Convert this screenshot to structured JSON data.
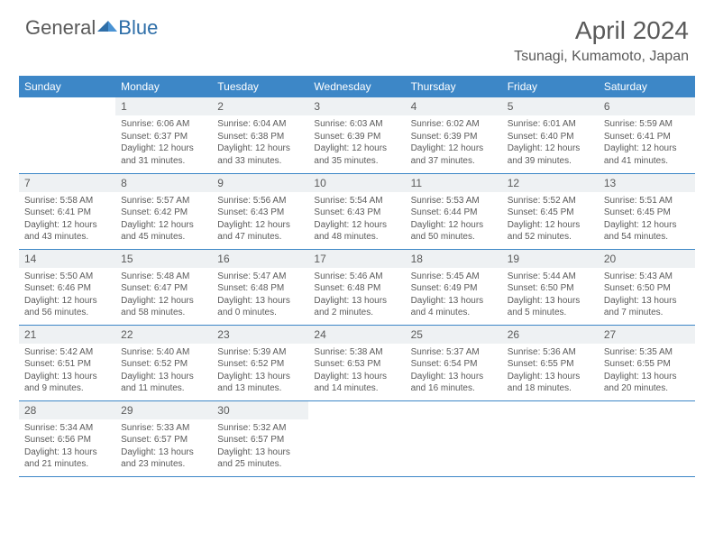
{
  "brand": {
    "part1": "General",
    "part2": "Blue"
  },
  "colors": {
    "header_bg": "#3d87c7",
    "text": "#5a5a5a",
    "daynum_bg": "#eef1f3",
    "rule": "#3d87c7"
  },
  "title": "April 2024",
  "location": "Tsunagi, Kumamoto, Japan",
  "day_headers": [
    "Sunday",
    "Monday",
    "Tuesday",
    "Wednesday",
    "Thursday",
    "Friday",
    "Saturday"
  ],
  "weeks": [
    [
      null,
      {
        "n": "1",
        "l1": "Sunrise: 6:06 AM",
        "l2": "Sunset: 6:37 PM",
        "l3": "Daylight: 12 hours",
        "l4": "and 31 minutes."
      },
      {
        "n": "2",
        "l1": "Sunrise: 6:04 AM",
        "l2": "Sunset: 6:38 PM",
        "l3": "Daylight: 12 hours",
        "l4": "and 33 minutes."
      },
      {
        "n": "3",
        "l1": "Sunrise: 6:03 AM",
        "l2": "Sunset: 6:39 PM",
        "l3": "Daylight: 12 hours",
        "l4": "and 35 minutes."
      },
      {
        "n": "4",
        "l1": "Sunrise: 6:02 AM",
        "l2": "Sunset: 6:39 PM",
        "l3": "Daylight: 12 hours",
        "l4": "and 37 minutes."
      },
      {
        "n": "5",
        "l1": "Sunrise: 6:01 AM",
        "l2": "Sunset: 6:40 PM",
        "l3": "Daylight: 12 hours",
        "l4": "and 39 minutes."
      },
      {
        "n": "6",
        "l1": "Sunrise: 5:59 AM",
        "l2": "Sunset: 6:41 PM",
        "l3": "Daylight: 12 hours",
        "l4": "and 41 minutes."
      }
    ],
    [
      {
        "n": "7",
        "l1": "Sunrise: 5:58 AM",
        "l2": "Sunset: 6:41 PM",
        "l3": "Daylight: 12 hours",
        "l4": "and 43 minutes."
      },
      {
        "n": "8",
        "l1": "Sunrise: 5:57 AM",
        "l2": "Sunset: 6:42 PM",
        "l3": "Daylight: 12 hours",
        "l4": "and 45 minutes."
      },
      {
        "n": "9",
        "l1": "Sunrise: 5:56 AM",
        "l2": "Sunset: 6:43 PM",
        "l3": "Daylight: 12 hours",
        "l4": "and 47 minutes."
      },
      {
        "n": "10",
        "l1": "Sunrise: 5:54 AM",
        "l2": "Sunset: 6:43 PM",
        "l3": "Daylight: 12 hours",
        "l4": "and 48 minutes."
      },
      {
        "n": "11",
        "l1": "Sunrise: 5:53 AM",
        "l2": "Sunset: 6:44 PM",
        "l3": "Daylight: 12 hours",
        "l4": "and 50 minutes."
      },
      {
        "n": "12",
        "l1": "Sunrise: 5:52 AM",
        "l2": "Sunset: 6:45 PM",
        "l3": "Daylight: 12 hours",
        "l4": "and 52 minutes."
      },
      {
        "n": "13",
        "l1": "Sunrise: 5:51 AM",
        "l2": "Sunset: 6:45 PM",
        "l3": "Daylight: 12 hours",
        "l4": "and 54 minutes."
      }
    ],
    [
      {
        "n": "14",
        "l1": "Sunrise: 5:50 AM",
        "l2": "Sunset: 6:46 PM",
        "l3": "Daylight: 12 hours",
        "l4": "and 56 minutes."
      },
      {
        "n": "15",
        "l1": "Sunrise: 5:48 AM",
        "l2": "Sunset: 6:47 PM",
        "l3": "Daylight: 12 hours",
        "l4": "and 58 minutes."
      },
      {
        "n": "16",
        "l1": "Sunrise: 5:47 AM",
        "l2": "Sunset: 6:48 PM",
        "l3": "Daylight: 13 hours",
        "l4": "and 0 minutes."
      },
      {
        "n": "17",
        "l1": "Sunrise: 5:46 AM",
        "l2": "Sunset: 6:48 PM",
        "l3": "Daylight: 13 hours",
        "l4": "and 2 minutes."
      },
      {
        "n": "18",
        "l1": "Sunrise: 5:45 AM",
        "l2": "Sunset: 6:49 PM",
        "l3": "Daylight: 13 hours",
        "l4": "and 4 minutes."
      },
      {
        "n": "19",
        "l1": "Sunrise: 5:44 AM",
        "l2": "Sunset: 6:50 PM",
        "l3": "Daylight: 13 hours",
        "l4": "and 5 minutes."
      },
      {
        "n": "20",
        "l1": "Sunrise: 5:43 AM",
        "l2": "Sunset: 6:50 PM",
        "l3": "Daylight: 13 hours",
        "l4": "and 7 minutes."
      }
    ],
    [
      {
        "n": "21",
        "l1": "Sunrise: 5:42 AM",
        "l2": "Sunset: 6:51 PM",
        "l3": "Daylight: 13 hours",
        "l4": "and 9 minutes."
      },
      {
        "n": "22",
        "l1": "Sunrise: 5:40 AM",
        "l2": "Sunset: 6:52 PM",
        "l3": "Daylight: 13 hours",
        "l4": "and 11 minutes."
      },
      {
        "n": "23",
        "l1": "Sunrise: 5:39 AM",
        "l2": "Sunset: 6:52 PM",
        "l3": "Daylight: 13 hours",
        "l4": "and 13 minutes."
      },
      {
        "n": "24",
        "l1": "Sunrise: 5:38 AM",
        "l2": "Sunset: 6:53 PM",
        "l3": "Daylight: 13 hours",
        "l4": "and 14 minutes."
      },
      {
        "n": "25",
        "l1": "Sunrise: 5:37 AM",
        "l2": "Sunset: 6:54 PM",
        "l3": "Daylight: 13 hours",
        "l4": "and 16 minutes."
      },
      {
        "n": "26",
        "l1": "Sunrise: 5:36 AM",
        "l2": "Sunset: 6:55 PM",
        "l3": "Daylight: 13 hours",
        "l4": "and 18 minutes."
      },
      {
        "n": "27",
        "l1": "Sunrise: 5:35 AM",
        "l2": "Sunset: 6:55 PM",
        "l3": "Daylight: 13 hours",
        "l4": "and 20 minutes."
      }
    ],
    [
      {
        "n": "28",
        "l1": "Sunrise: 5:34 AM",
        "l2": "Sunset: 6:56 PM",
        "l3": "Daylight: 13 hours",
        "l4": "and 21 minutes."
      },
      {
        "n": "29",
        "l1": "Sunrise: 5:33 AM",
        "l2": "Sunset: 6:57 PM",
        "l3": "Daylight: 13 hours",
        "l4": "and 23 minutes."
      },
      {
        "n": "30",
        "l1": "Sunrise: 5:32 AM",
        "l2": "Sunset: 6:57 PM",
        "l3": "Daylight: 13 hours",
        "l4": "and 25 minutes."
      },
      null,
      null,
      null,
      null
    ]
  ]
}
